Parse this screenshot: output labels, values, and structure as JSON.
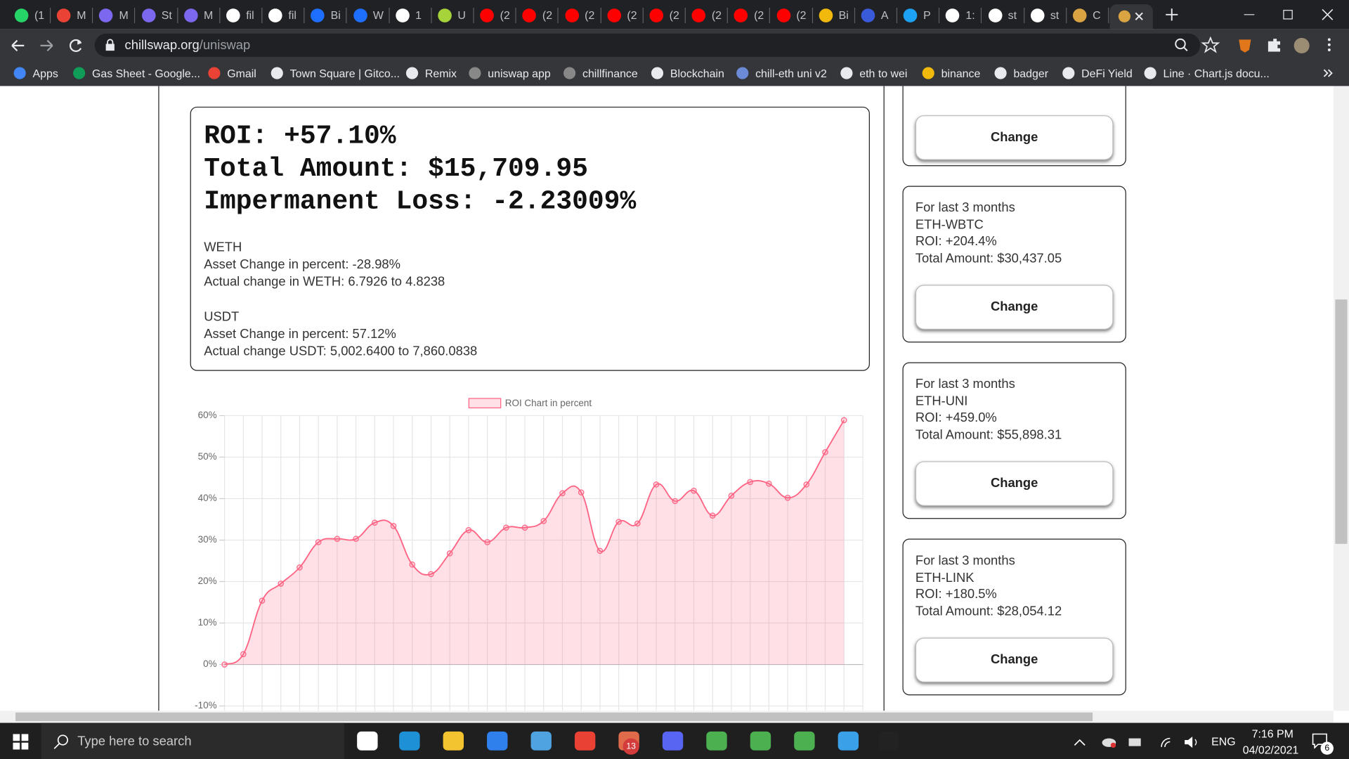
{
  "browser": {
    "tabs": [
      "(1",
      "M",
      "M",
      "St",
      "M",
      "fil",
      "fil",
      "Bi",
      "W",
      "1",
      "U",
      "(2",
      "(2",
      "(2",
      "(2",
      "(2",
      "(2",
      "(2",
      "(2",
      "Bi",
      "A",
      "P",
      "1:",
      "st",
      "st",
      "C"
    ],
    "url_host": "chillswap.org",
    "url_path": "/uniswap",
    "bookmarks": [
      "Apps",
      "Gas Sheet - Google...",
      "Gmail",
      "Town Square | Gitco...",
      "Remix",
      "uniswap app",
      "chillfinance",
      "Blockchain",
      "chill-eth uni v2",
      "eth to wei",
      "binance",
      "badger",
      "DeFi Yield",
      "Line · Chart.js docu..."
    ]
  },
  "result": {
    "roi": "ROI: +57.10%",
    "total": "Total Amount: $15,709.95",
    "loss": "Impermanent Loss: -2.23009%",
    "assets": [
      {
        "name": "WETH",
        "change": "Asset Change in percent: -28.98%",
        "actual": "Actual change in WETH: 6.7926 to 4.8238"
      },
      {
        "name": "USDT",
        "change": "Asset Change in percent: 57.12%",
        "actual": "Actual change USDT: 5,002.6400 to 7,860.0838"
      }
    ]
  },
  "chart_data": {
    "type": "line",
    "legend": "ROI Chart in percent",
    "color": "#ff6384",
    "fill": true,
    "grid": true,
    "categories": [
      null,
      null,
      null,
      null,
      null,
      null,
      null,
      null,
      null,
      null,
      null,
      null,
      null,
      null,
      null,
      null,
      null,
      null,
      null,
      null,
      null,
      null,
      null,
      null,
      null,
      null,
      null,
      null,
      null,
      null,
      null,
      null,
      null,
      null
    ],
    "values": [
      0,
      2.5,
      15.4,
      19.5,
      23.4,
      29.5,
      30.3,
      30.3,
      34.2,
      33.4,
      24.1,
      21.8,
      26.8,
      32.4,
      29.5,
      33,
      33,
      34.6,
      41.3,
      41.5,
      27.4,
      34.4,
      34,
      43.4,
      39.4,
      41.9,
      35.9,
      40.7,
      44,
      43.6,
      40.2,
      43.4,
      51.2,
      58.9
    ],
    "ylim": [
      -10,
      60
    ],
    "yticks": [
      {
        "value": -10,
        "label": "-10%"
      },
      {
        "value": 0,
        "label": "0%"
      },
      {
        "value": 10,
        "label": "10%"
      },
      {
        "value": 20,
        "label": "20%"
      },
      {
        "value": 30,
        "label": "30%"
      },
      {
        "value": 40,
        "label": "40%"
      },
      {
        "value": 50,
        "label": "50%"
      },
      {
        "value": 60,
        "label": "60%"
      }
    ]
  },
  "top_card": {
    "button": "Change"
  },
  "pools": [
    {
      "period": "For last 3 months",
      "pair": "ETH-WBTC",
      "roi": "ROI: +204.4%",
      "total": "Total Amount: $30,437.05",
      "button": "Change"
    },
    {
      "period": "For last 3 months",
      "pair": "ETH-UNI",
      "roi": "ROI: +459.0%",
      "total": "Total Amount: $55,898.31",
      "button": "Change"
    },
    {
      "period": "For last 3 months",
      "pair": "ETH-LINK",
      "roi": "ROI: +180.5%",
      "total": "Total Amount: $28,054.12",
      "button": "Change"
    }
  ],
  "taskbar": {
    "search": "Type here to search",
    "badge": "13",
    "lang": "ENG",
    "time": "7:16 PM",
    "date": "04/02/2021",
    "notifications": "6"
  }
}
